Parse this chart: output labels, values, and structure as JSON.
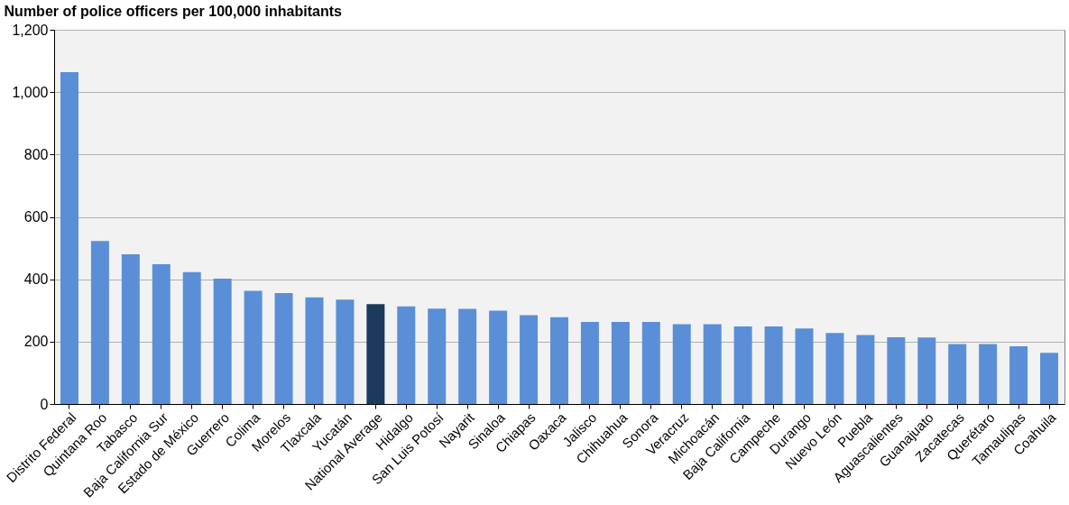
{
  "chart_data": {
    "type": "bar",
    "title": "Number of police officers per 100,000 inhabitants",
    "categories": [
      "Distrito Federal",
      "Quintana Roo",
      "Tabasco",
      "Baja California Sur",
      "Estado de México",
      "Guerrero",
      "Colima",
      "Morelos",
      "Tlaxcala",
      "Yucatán",
      "National Average",
      "Hidalgo",
      "San Luis Potosí",
      "Nayarit",
      "Sinaloa",
      "Chiapas",
      "Oaxaca",
      "Jalisco",
      "Chihuahua",
      "Sonora",
      "Veracruz",
      "Michoacán",
      "Baja California",
      "Campeche",
      "Durango",
      "Nuevo León",
      "Puebla",
      "Aguascalientes",
      "Guanajuato",
      "Zacatecas",
      "Querétaro",
      "Tamaulipas",
      "Coahuila"
    ],
    "values": [
      1064,
      523,
      480,
      448,
      423,
      402,
      363,
      356,
      342,
      335,
      320,
      313,
      306,
      305,
      299,
      285,
      278,
      263,
      263,
      263,
      256,
      256,
      249,
      249,
      242,
      228,
      221,
      214,
      213,
      192,
      192,
      185,
      164
    ],
    "colors": [
      "#5a8fd8",
      "#5a8fd8",
      "#5a8fd8",
      "#5a8fd8",
      "#5a8fd8",
      "#5a8fd8",
      "#5a8fd8",
      "#5a8fd8",
      "#5a8fd8",
      "#5a8fd8",
      "#1b3a5c",
      "#5a8fd8",
      "#5a8fd8",
      "#5a8fd8",
      "#5a8fd8",
      "#5a8fd8",
      "#5a8fd8",
      "#5a8fd8",
      "#5a8fd8",
      "#5a8fd8",
      "#5a8fd8",
      "#5a8fd8",
      "#5a8fd8",
      "#5a8fd8",
      "#5a8fd8",
      "#5a8fd8",
      "#5a8fd8",
      "#5a8fd8",
      "#5a8fd8",
      "#5a8fd8",
      "#5a8fd8",
      "#5a8fd8",
      "#5a8fd8"
    ],
    "ylim": [
      0,
      1200
    ],
    "yticks": [
      0,
      {
        "value": 200,
        "label": "200"
      },
      {
        "value": 400,
        "label": "400"
      },
      {
        "value": 600,
        "label": "600"
      },
      {
        "value": 800,
        "label": "800"
      },
      {
        "value": 1000,
        "label": "1,000"
      },
      {
        "value": 1200,
        "label": "1,200"
      }
    ],
    "grid": "y",
    "legend": false
  }
}
